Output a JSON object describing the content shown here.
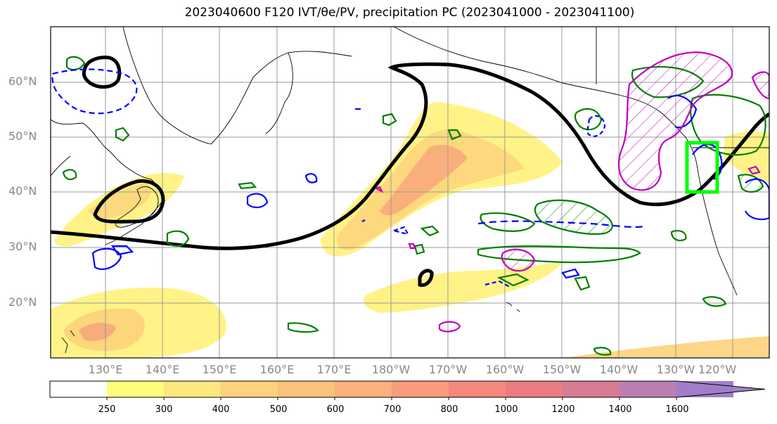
{
  "title": "2023040600 F120 IVT/θe/PV, precipitation PC (2023041000 - 2023041100)",
  "map": {
    "lat_labels": [
      "60°N",
      "50°N",
      "40°N",
      "30°N",
      "20°N"
    ],
    "lon_labels": [
      "130°E",
      "140°E",
      "150°E",
      "160°E",
      "170°E",
      "180°W",
      "170°W",
      "160°W",
      "150°W",
      "140°W",
      "130°W",
      "120°W"
    ],
    "colors": {
      "ivt_low": "#fff27a",
      "ivt_mid": "#fdd27a",
      "ivt_high": "#f7a57c",
      "ivt_peak": "#f08a7c",
      "theta_e_contour": "#000000",
      "pv_green": "#008000",
      "pv_blue": "#0000ff",
      "pv_magenta": "#c000c0",
      "target_box": "#00ff00",
      "coastline": "#000000",
      "gridline": "#9a9a9a"
    }
  },
  "colorbar": {
    "levels": [
      "250",
      "300",
      "400",
      "500",
      "600",
      "700",
      "800",
      "1000",
      "1200",
      "1400",
      "1600"
    ],
    "colors": [
      "#ffffff",
      "#fffd7a",
      "#fde67c",
      "#fdd27a",
      "#fdc27a",
      "#fcb07b",
      "#f99b7c",
      "#f5887c",
      "#ea7c80",
      "#d77c92",
      "#b97fb3",
      "#a07fc8"
    ]
  }
}
